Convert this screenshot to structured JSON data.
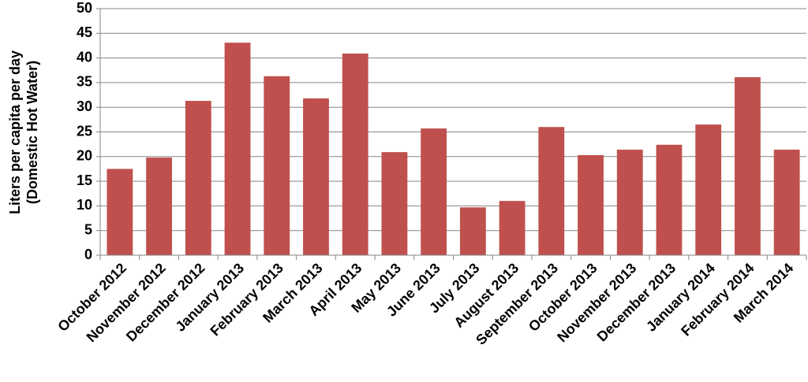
{
  "chart_data": {
    "type": "bar",
    "ylabel": [
      "Liters per capita per day",
      "(Domestic Hot Water)"
    ],
    "categories": [
      "October 2012",
      "November 2012",
      "December 2012",
      "January 2013",
      "February 2013",
      "March 2013",
      "April 2013",
      "May 2013",
      "June 2013",
      "July 2013",
      "August 2013",
      "September 2013",
      "October 2013",
      "November 2013",
      "December 2013",
      "January 2014",
      "February 2014",
      "March 2014"
    ],
    "values": [
      17.5,
      19.8,
      31.3,
      43.1,
      36.3,
      31.8,
      40.9,
      20.9,
      25.7,
      9.7,
      11.0,
      26.0,
      20.3,
      21.4,
      22.4,
      26.5,
      36.1,
      21.4
    ],
    "color": "#c0504d",
    "ylim": [
      0,
      50
    ],
    "yticks": [
      0,
      5,
      10,
      15,
      20,
      25,
      30,
      35,
      40,
      45,
      50
    ],
    "grid": true
  }
}
